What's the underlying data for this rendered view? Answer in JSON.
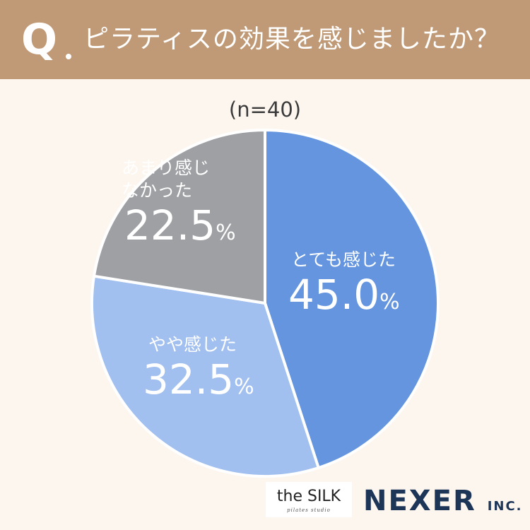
{
  "header": {
    "mark": "Q",
    "question": "ピラティスの効果を感じましたか？"
  },
  "sample_size": "(n=40)",
  "colors": {
    "header_bg": "#c09a76",
    "page_bg": "#fdf6ef",
    "slice_1": "#6495de",
    "slice_2": "#a1c0ef",
    "slice_3": "#9fa0a4"
  },
  "chart_data": {
    "type": "pie",
    "title": "ピラティスの効果を感じましたか？",
    "categories": [
      "とても感じた",
      "やや感じた",
      "あまり感じなかった"
    ],
    "values": [
      45.0,
      32.5,
      22.5
    ],
    "labels": [
      {
        "category": "とても感じた",
        "value": "45.0",
        "unit": "%"
      },
      {
        "category": "やや感じた",
        "value": "32.5",
        "unit": "%"
      },
      {
        "category": "あまり感じなかった",
        "value": "22.5",
        "unit": "%"
      }
    ],
    "start": "12 o'clock",
    "direction": "clockwise",
    "legend": "none"
  },
  "logos": {
    "silk_main": "the SILK",
    "silk_sub": "pilates studio",
    "nexer_main": "NEXER",
    "nexer_suffix": "INC."
  }
}
